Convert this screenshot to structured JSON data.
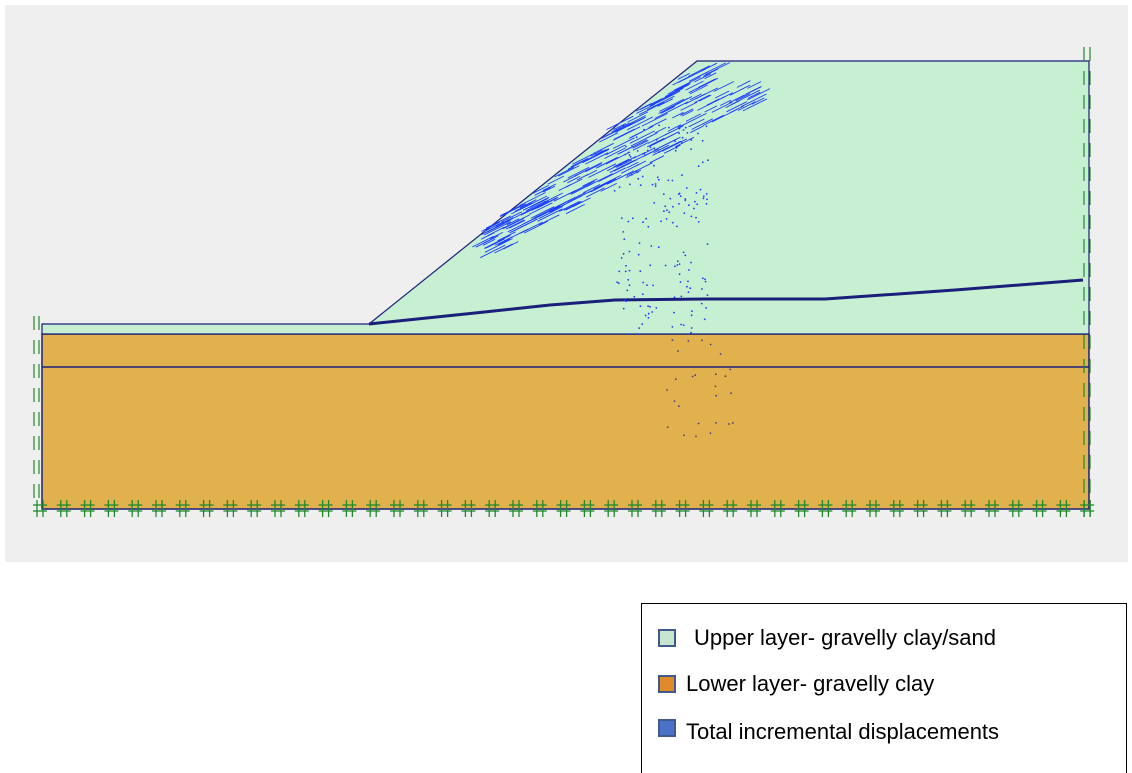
{
  "colors": {
    "canvas_background": "#efefef",
    "upper_layer_fill": "#c7f0d2",
    "lower_layer_fill": "#e1b14e",
    "outline": "#1a1f7a",
    "displacement_vectors": "#1a3cff",
    "lower_displacement_points": "#4a3a8c",
    "boundary_fixity": "#1f8a2a"
  },
  "model": {
    "layers": [
      {
        "id": "upper",
        "material": "gravelly clay/sand"
      },
      {
        "id": "lower",
        "material": "gravelly clay"
      }
    ],
    "boundary_conditions": {
      "side_boundaries": "horizontal fixity",
      "base_boundary": "full fixity"
    },
    "result_shown": "total incremental displacements"
  },
  "legend": {
    "items": [
      {
        "label": "Upper layer- gravelly clay/sand",
        "swatch_color": "#c7e6cf",
        "icon": "upper-layer-swatch"
      },
      {
        "label": "Lower layer- gravelly clay",
        "swatch_color": "#e08a2c",
        "icon": "lower-layer-swatch"
      },
      {
        "label": "Total incremental displacements",
        "swatch_color": "#4a72c8",
        "icon": "displacement-swatch"
      }
    ]
  }
}
